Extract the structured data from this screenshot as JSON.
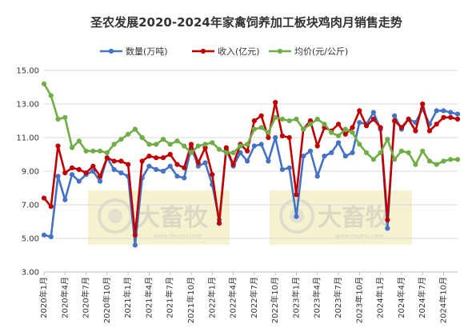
{
  "chart_data": {
    "type": "line",
    "title": "圣农发展2020-2024年家禽饲养加工板块鸡肉月销售走势",
    "legend_position": "top",
    "ylim": [
      3.0,
      15.0
    ],
    "y_ticks": [
      "3.00",
      "5.00",
      "7.00",
      "9.00",
      "11.00",
      "13.00",
      "15.00"
    ],
    "grid": "horizontal",
    "x": [
      "2020年1月",
      "2020年2月",
      "2020年3月",
      "2020年4月",
      "2020年5月",
      "2020年6月",
      "2020年7月",
      "2020年8月",
      "2020年9月",
      "2020年10月",
      "2020年11月",
      "2020年12月",
      "2021年1月",
      "2021年2月",
      "2021年3月",
      "2021年4月",
      "2021年5月",
      "2021年6月",
      "2021年7月",
      "2021年8月",
      "2021年9月",
      "2021年10月",
      "2021年11月",
      "2021年12月",
      "2022年1月",
      "2022年2月",
      "2022年3月",
      "2022年4月",
      "2022年5月",
      "2022年6月",
      "2022年7月",
      "2022年8月",
      "2022年9月",
      "2022年10月",
      "2022年11月",
      "2022年12月",
      "2023年1月",
      "2023年2月",
      "2023年3月",
      "2023年4月",
      "2023年5月",
      "2023年6月",
      "2023年7月",
      "2023年8月",
      "2023年9月",
      "2023年10月",
      "2023年11月",
      "2023年12月",
      "2024年1月",
      "2024年2月",
      "2024年3月",
      "2024年4月",
      "2024年5月",
      "2024年6月",
      "2024年7月",
      "2024年8月",
      "2024年9月",
      "2024年10月",
      "2024年11月",
      "2024年12月"
    ],
    "x_tick_labels": [
      "2020年1月",
      "2020年4月",
      "2020年7月",
      "2020年10月",
      "2021年1月",
      "2021年4月",
      "2021年7月",
      "2021年10月",
      "2022年1月",
      "2022年4月",
      "2022年7月",
      "2022年10月",
      "2023年1月",
      "2023年4月",
      "2023年7月",
      "2023年10月",
      "2024年1月",
      "2024年4月",
      "2024年7月",
      "2024年10月"
    ],
    "x_tick_every": 3,
    "series": [
      {
        "name": "数量(万吨)",
        "color": "#4472c4",
        "values": [
          5.2,
          5.1,
          8.7,
          7.3,
          8.8,
          8.4,
          8.8,
          9.0,
          8.4,
          9.8,
          9.1,
          8.9,
          8.7,
          4.6,
          8.6,
          9.3,
          9.1,
          9.0,
          9.3,
          8.7,
          8.6,
          10.4,
          9.3,
          9.5,
          8.2,
          6.1,
          10.3,
          9.3,
          10.1,
          9.6,
          10.5,
          10.6,
          9.6,
          11.0,
          9.1,
          9.2,
          6.3,
          9.9,
          10.2,
          8.7,
          9.9,
          10.1,
          10.7,
          9.9,
          10.1,
          11.9,
          11.8,
          12.5,
          11.5,
          5.6,
          12.3,
          11.5,
          12.1,
          11.9,
          12.7,
          11.8,
          12.6,
          12.6,
          12.5,
          12.4
        ]
      },
      {
        "name": "收入(亿元)",
        "color": "#c00000",
        "values": [
          7.4,
          6.9,
          10.5,
          8.9,
          9.2,
          9.1,
          8.9,
          9.3,
          8.7,
          9.8,
          9.6,
          9.6,
          9.4,
          5.2,
          9.6,
          9.9,
          9.8,
          9.8,
          10.0,
          9.4,
          9.2,
          10.6,
          9.5,
          10.4,
          8.8,
          5.9,
          10.4,
          9.4,
          10.6,
          10.2,
          12.0,
          12.3,
          11.0,
          13.1,
          11.1,
          11.0,
          7.6,
          11.5,
          12.0,
          10.5,
          11.6,
          11.4,
          11.8,
          11.2,
          11.6,
          12.6,
          11.7,
          12.1,
          11.6,
          6.1,
          12.0,
          11.6,
          12.1,
          11.4,
          13.0,
          11.4,
          11.8,
          12.2,
          12.2,
          12.1
        ]
      },
      {
        "name": "均价(元/公斤)",
        "color": "#70ad47",
        "values": [
          14.2,
          13.5,
          12.1,
          12.2,
          10.4,
          10.8,
          10.2,
          10.2,
          10.2,
          10.1,
          10.6,
          10.9,
          11.2,
          11.5,
          11.0,
          10.6,
          10.6,
          10.9,
          10.6,
          10.8,
          10.5,
          10.1,
          10.5,
          10.6,
          10.7,
          10.3,
          10.1,
          10.1,
          10.5,
          10.6,
          11.5,
          11.6,
          11.3,
          12.2,
          12.1,
          12.0,
          12.1,
          11.5,
          11.8,
          12.1,
          11.8,
          11.3,
          11.1,
          11.5,
          11.3,
          10.6,
          10.1,
          9.7,
          10.1,
          10.9,
          9.7,
          10.2,
          10.1,
          9.4,
          10.2,
          9.6,
          9.4,
          9.6,
          9.7,
          9.7
        ]
      }
    ]
  },
  "watermark": {
    "text": "大畜牧",
    "url": "www.dxumu.com"
  }
}
